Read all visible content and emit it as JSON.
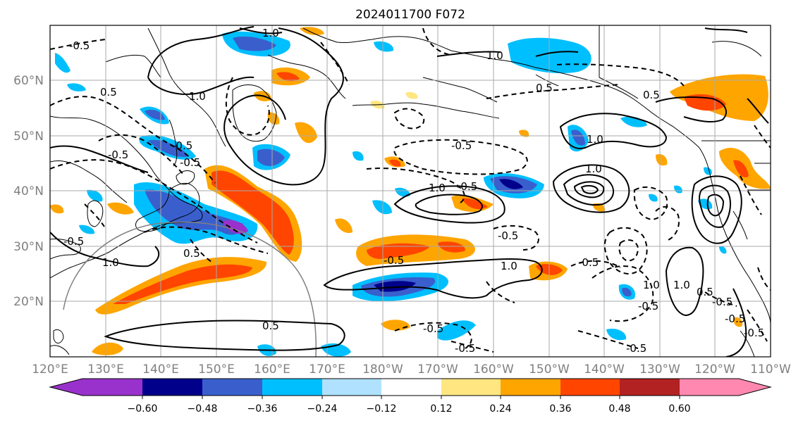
{
  "title": "2024011700 F072",
  "lat_labels": [
    "20°N",
    "30°N",
    "40°N",
    "50°N",
    "60°N"
  ],
  "lon_labels": [
    "120°E",
    "130°E",
    "140°E",
    "150°E",
    "160°E",
    "170°E",
    "180°W",
    "170°W",
    "160°W",
    "150°W",
    "140°W",
    "130°W",
    "120°W",
    "110°W"
  ],
  "colorbar": {
    "ticks": [
      "−0.60",
      "−0.48",
      "−0.36",
      "−0.24",
      "−0.12",
      "0.12",
      "0.24",
      "0.36",
      "0.48",
      "0.60"
    ],
    "colors": [
      "#9932cc",
      "#00008b",
      "#3a5fcd",
      "#00bfff",
      "#b0e2ff",
      "#ffffff",
      "#ffe680",
      "#ffa500",
      "#ff4500",
      "#b22222",
      "#ff88b0"
    ]
  },
  "contour_labels": [
    "-0.5",
    "1.0",
    "0.5",
    "-0.5",
    "1.0",
    "-0.5",
    "1.0",
    "-0.5",
    "1.0",
    "-0.5",
    "0.5",
    "-0.5",
    "1.0",
    "-0.5",
    "-0.5",
    "1.0",
    "0.5",
    "-0.5",
    "-0.5",
    "-0.5",
    "1.0",
    "-0.5",
    "0.5",
    "-0.5",
    "0.5",
    "-0.5",
    "1.0",
    "1.0",
    "-0.5",
    "0.5",
    "-0.5",
    "1.0",
    "-0.5"
  ],
  "map": {
    "projection": "cylindrical",
    "lon_range": [
      "120°E",
      "110°W"
    ],
    "lat_range": [
      "10°N",
      "70°N"
    ],
    "grid": true,
    "field_colors": {
      "land_lines": "#000000",
      "grid": "#aaaaaa",
      "circle": "#808080"
    }
  }
}
